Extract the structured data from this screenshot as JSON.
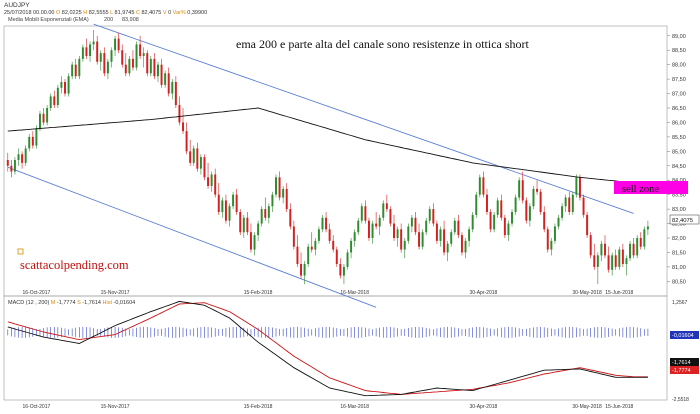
{
  "header": {
    "symbol": "AUDJPY",
    "bar_info": {
      "date": "25/07/2018",
      "time": "00.00.00",
      "open_label": "O",
      "open": "82,0225",
      "high_label": "H",
      "high": "82,5555",
      "low_label": "L",
      "low": "81,9745",
      "close_label": "C",
      "close": "82,4075",
      "volume_label": "V",
      "volume": "0",
      "change_label": "Var%",
      "change": "0,39900"
    },
    "ema_label": "Media Mobili Esponenziali (EMA)",
    "ema_period": "200",
    "ema_value": "83,908"
  },
  "annotations": {
    "ema_note": "ema 200 e parte alta del canale sono resistenze in ottica short",
    "sell_zone": "sell zone",
    "watermark": "scattacolpending.com"
  },
  "colors": {
    "up": "#2e8b2e",
    "down": "#d42020",
    "ema": "#111111",
    "channel": "#5b7fd6",
    "sell_zone": "#ff00e6",
    "macd_line": "#111111",
    "signal_line": "#cc1111",
    "histogram": "#3344cc",
    "watermark": "#c01010",
    "current_price_box": "#ffffff",
    "macd_badge": "#111111",
    "signal_badge": "#dd2222",
    "hist_badge": "#2233bb"
  },
  "chart_data": [
    {
      "type": "candlestick",
      "title": "AUDJPY",
      "y_ticks": [
        "89,00",
        "88,50",
        "88,00",
        "87,50",
        "87,00",
        "86,50",
        "86,00",
        "85,50",
        "85,00",
        "84,50",
        "84,00",
        "83,50",
        "83,00",
        "82,50",
        "82,00",
        "81,50",
        "81,00",
        "80,50"
      ],
      "y_range": [
        80.2,
        89.2
      ],
      "current_price": "82,4075",
      "x_ticks": [
        "16-Oct-2017",
        "15-Nov-2017",
        "15-Feb-2018",
        "16-Mar-2018",
        "30-Apr-2018",
        "30-May-2018",
        "15-Jun-2018"
      ],
      "x_tick_index": [
        8,
        30,
        70,
        97,
        133,
        162,
        171
      ],
      "candles_ohlc": [
        [
          84.7,
          84.95,
          84.3,
          84.5
        ],
        [
          84.5,
          84.7,
          84.1,
          84.3
        ],
        [
          84.3,
          84.8,
          84.2,
          84.7
        ],
        [
          84.7,
          85.1,
          84.5,
          84.9
        ],
        [
          84.9,
          85.0,
          84.4,
          84.6
        ],
        [
          84.6,
          85.2,
          84.5,
          85.1
        ],
        [
          85.1,
          85.6,
          85.0,
          85.5
        ],
        [
          85.5,
          85.7,
          85.1,
          85.2
        ],
        [
          85.2,
          85.9,
          85.1,
          85.8
        ],
        [
          85.8,
          86.4,
          85.7,
          86.3
        ],
        [
          86.3,
          86.5,
          85.9,
          86.0
        ],
        [
          86.0,
          86.6,
          85.9,
          86.5
        ],
        [
          86.5,
          87.0,
          86.4,
          86.9
        ],
        [
          86.9,
          87.1,
          86.5,
          86.6
        ],
        [
          86.6,
          87.3,
          86.5,
          87.2
        ],
        [
          87.2,
          87.6,
          87.0,
          87.4
        ],
        [
          87.4,
          87.5,
          86.9,
          87.0
        ],
        [
          87.0,
          87.7,
          86.9,
          87.6
        ],
        [
          87.6,
          88.1,
          87.5,
          88.0
        ],
        [
          88.0,
          88.2,
          87.5,
          87.6
        ],
        [
          87.6,
          88.3,
          87.5,
          88.2
        ],
        [
          88.2,
          88.7,
          88.1,
          88.6
        ],
        [
          88.6,
          88.9,
          88.2,
          88.3
        ],
        [
          88.3,
          88.8,
          88.1,
          88.7
        ],
        [
          88.7,
          89.2,
          88.5,
          88.8
        ],
        [
          88.8,
          89.0,
          88.0,
          88.1
        ],
        [
          88.1,
          88.5,
          87.8,
          88.4
        ],
        [
          88.4,
          88.6,
          87.6,
          87.7
        ],
        [
          87.7,
          88.2,
          87.5,
          88.1
        ],
        [
          88.1,
          88.6,
          87.9,
          88.5
        ],
        [
          88.5,
          89.0,
          88.3,
          88.9
        ],
        [
          88.9,
          89.1,
          88.4,
          88.5
        ],
        [
          88.5,
          88.7,
          87.9,
          88.0
        ],
        [
          88.0,
          88.4,
          87.6,
          87.7
        ],
        [
          87.7,
          88.3,
          87.6,
          88.2
        ],
        [
          88.2,
          88.5,
          87.8,
          87.9
        ],
        [
          87.9,
          88.8,
          87.8,
          88.7
        ],
        [
          88.7,
          89.0,
          88.2,
          88.3
        ],
        [
          88.3,
          88.6,
          87.9,
          88.4
        ],
        [
          88.4,
          88.5,
          87.6,
          87.7
        ],
        [
          87.7,
          88.3,
          87.6,
          88.2
        ],
        [
          88.2,
          88.4,
          87.5,
          87.6
        ],
        [
          87.6,
          88.1,
          87.4,
          88.0
        ],
        [
          88.0,
          88.2,
          87.2,
          87.3
        ],
        [
          87.3,
          87.8,
          87.2,
          87.7
        ],
        [
          87.7,
          87.9,
          86.9,
          87.0
        ],
        [
          87.0,
          87.5,
          86.8,
          87.4
        ],
        [
          87.4,
          87.6,
          86.5,
          86.6
        ],
        [
          86.6,
          86.9,
          85.9,
          86.0
        ],
        [
          86.0,
          86.5,
          85.6,
          85.7
        ],
        [
          85.7,
          86.0,
          84.9,
          85.0
        ],
        [
          85.0,
          85.4,
          84.5,
          84.6
        ],
        [
          84.6,
          85.2,
          84.5,
          85.1
        ],
        [
          85.1,
          85.3,
          84.3,
          84.4
        ],
        [
          84.4,
          84.9,
          84.2,
          84.8
        ],
        [
          84.8,
          84.9,
          84.0,
          84.1
        ],
        [
          84.1,
          84.6,
          83.7,
          83.8
        ],
        [
          83.8,
          84.3,
          83.6,
          84.2
        ],
        [
          84.2,
          84.4,
          83.4,
          83.5
        ],
        [
          83.5,
          83.9,
          82.8,
          82.9
        ],
        [
          82.9,
          83.4,
          82.7,
          83.3
        ],
        [
          83.3,
          83.5,
          82.5,
          82.6
        ],
        [
          82.6,
          83.2,
          82.4,
          83.1
        ],
        [
          83.1,
          83.6,
          83.0,
          83.5
        ],
        [
          83.5,
          83.7,
          82.8,
          82.9
        ],
        [
          82.9,
          83.0,
          82.1,
          82.2
        ],
        [
          82.2,
          82.8,
          82.0,
          82.7
        ],
        [
          82.7,
          82.9,
          82.1,
          82.2
        ],
        [
          82.2,
          82.5,
          81.5,
          81.6
        ],
        [
          81.6,
          82.2,
          81.4,
          82.1
        ],
        [
          82.1,
          82.6,
          81.9,
          82.5
        ],
        [
          82.5,
          83.1,
          82.4,
          83.0
        ],
        [
          83.0,
          83.4,
          82.6,
          82.7
        ],
        [
          82.7,
          83.2,
          82.5,
          83.1
        ],
        [
          83.1,
          83.6,
          82.9,
          83.5
        ],
        [
          83.5,
          84.2,
          83.4,
          84.1
        ],
        [
          84.1,
          84.3,
          83.3,
          83.4
        ],
        [
          83.4,
          83.8,
          83.2,
          83.7
        ],
        [
          83.7,
          83.9,
          82.9,
          83.0
        ],
        [
          83.0,
          83.2,
          82.3,
          82.4
        ],
        [
          82.4,
          82.6,
          81.6,
          81.7
        ],
        [
          81.7,
          82.1,
          81.0,
          81.1
        ],
        [
          81.1,
          81.5,
          80.6,
          80.7
        ],
        [
          80.7,
          81.2,
          80.4,
          81.1
        ],
        [
          81.1,
          81.8,
          81.0,
          81.7
        ],
        [
          81.7,
          82.2,
          81.5,
          81.6
        ],
        [
          81.6,
          82.0,
          81.4,
          81.9
        ],
        [
          81.9,
          82.4,
          81.8,
          82.3
        ],
        [
          82.3,
          82.8,
          82.2,
          82.7
        ],
        [
          82.7,
          82.9,
          82.2,
          82.3
        ],
        [
          82.3,
          82.5,
          81.8,
          81.9
        ],
        [
          81.9,
          82.1,
          81.5,
          81.6
        ],
        [
          81.6,
          81.7,
          81.0,
          81.1
        ],
        [
          81.1,
          81.3,
          80.6,
          80.7
        ],
        [
          80.7,
          81.1,
          80.4,
          81.0
        ],
        [
          81.0,
          81.6,
          80.9,
          81.5
        ],
        [
          81.5,
          82.0,
          81.3,
          81.9
        ],
        [
          81.9,
          82.3,
          81.7,
          82.2
        ],
        [
          82.2,
          82.7,
          82.1,
          82.6
        ],
        [
          82.6,
          83.2,
          82.5,
          83.1
        ],
        [
          83.1,
          83.3,
          82.5,
          82.6
        ],
        [
          82.6,
          82.7,
          81.9,
          82.0
        ],
        [
          82.0,
          82.6,
          81.8,
          82.5
        ],
        [
          82.5,
          82.9,
          82.3,
          82.4
        ],
        [
          82.4,
          82.8,
          82.1,
          82.7
        ],
        [
          82.7,
          83.3,
          82.6,
          83.2
        ],
        [
          83.2,
          83.5,
          82.9,
          83.0
        ],
        [
          83.0,
          83.1,
          82.4,
          82.5
        ],
        [
          82.5,
          82.8,
          81.9,
          82.0
        ],
        [
          82.0,
          82.4,
          81.7,
          82.3
        ],
        [
          82.3,
          82.5,
          81.5,
          81.6
        ],
        [
          81.6,
          82.0,
          81.3,
          81.9
        ],
        [
          81.9,
          82.5,
          81.8,
          82.4
        ],
        [
          82.4,
          82.8,
          82.2,
          82.7
        ],
        [
          82.7,
          82.9,
          82.1,
          82.2
        ],
        [
          82.2,
          82.5,
          81.6,
          81.7
        ],
        [
          81.7,
          82.3,
          81.6,
          82.2
        ],
        [
          82.2,
          82.7,
          82.1,
          82.6
        ],
        [
          82.6,
          83.1,
          82.5,
          83.0
        ],
        [
          83.0,
          83.2,
          82.4,
          82.5
        ],
        [
          82.5,
          82.6,
          81.8,
          81.9
        ],
        [
          81.9,
          82.4,
          81.7,
          82.3
        ],
        [
          82.3,
          82.6,
          81.4,
          81.5
        ],
        [
          81.5,
          81.9,
          81.2,
          81.8
        ],
        [
          81.8,
          82.3,
          81.7,
          82.2
        ],
        [
          82.2,
          82.7,
          82.1,
          82.6
        ],
        [
          82.6,
          82.8,
          82.0,
          82.1
        ],
        [
          82.1,
          82.2,
          81.4,
          81.5
        ],
        [
          81.5,
          82.0,
          81.3,
          81.9
        ],
        [
          81.9,
          82.4,
          81.7,
          82.3
        ],
        [
          82.3,
          82.9,
          82.2,
          82.8
        ],
        [
          82.8,
          83.6,
          82.7,
          83.5
        ],
        [
          83.5,
          84.2,
          83.4,
          84.1
        ],
        [
          84.1,
          84.3,
          83.4,
          83.5
        ],
        [
          83.5,
          83.7,
          82.8,
          82.9
        ],
        [
          82.9,
          83.0,
          82.2,
          82.3
        ],
        [
          82.3,
          82.9,
          82.2,
          82.8
        ],
        [
          82.8,
          83.4,
          82.7,
          83.3
        ],
        [
          83.3,
          83.5,
          82.6,
          82.7
        ],
        [
          82.7,
          82.8,
          82.0,
          82.1
        ],
        [
          82.1,
          82.6,
          81.9,
          82.5
        ],
        [
          82.5,
          83.0,
          82.4,
          82.9
        ],
        [
          82.9,
          83.5,
          82.8,
          83.4
        ],
        [
          83.4,
          84.1,
          83.3,
          84.0
        ],
        [
          84.0,
          84.3,
          83.2,
          83.3
        ],
        [
          83.3,
          83.4,
          82.5,
          82.6
        ],
        [
          82.6,
          83.2,
          82.4,
          83.1
        ],
        [
          83.1,
          83.8,
          83.0,
          83.7
        ],
        [
          83.7,
          84.0,
          83.5,
          83.6
        ],
        [
          83.6,
          83.7,
          82.8,
          82.9
        ],
        [
          82.9,
          83.1,
          82.2,
          82.3
        ],
        [
          82.3,
          82.4,
          81.5,
          81.6
        ],
        [
          81.6,
          82.0,
          81.4,
          81.9
        ],
        [
          81.9,
          82.5,
          81.8,
          82.4
        ],
        [
          82.4,
          82.8,
          82.3,
          82.7
        ],
        [
          82.7,
          83.2,
          82.6,
          83.1
        ],
        [
          83.1,
          83.5,
          82.9,
          83.4
        ],
        [
          83.4,
          83.6,
          82.8,
          82.9
        ],
        [
          82.9,
          83.6,
          82.8,
          83.5
        ],
        [
          83.5,
          84.2,
          83.4,
          84.1
        ],
        [
          84.1,
          84.2,
          83.3,
          83.4
        ],
        [
          83.4,
          83.5,
          82.7,
          82.8
        ],
        [
          82.8,
          82.9,
          82.0,
          82.1
        ],
        [
          82.1,
          82.2,
          81.3,
          81.4
        ],
        [
          81.4,
          81.8,
          80.9,
          81.0
        ],
        [
          81.0,
          81.5,
          80.4,
          81.4
        ],
        [
          81.4,
          81.9,
          81.2,
          81.8
        ],
        [
          81.8,
          82.1,
          81.3,
          81.4
        ],
        [
          81.4,
          81.7,
          80.8,
          80.9
        ],
        [
          80.9,
          81.5,
          80.7,
          81.4
        ],
        [
          81.4,
          81.6,
          80.9,
          81.0
        ],
        [
          81.0,
          81.7,
          80.9,
          81.6
        ],
        [
          81.6,
          81.8,
          81.0,
          81.1
        ],
        [
          81.1,
          81.4,
          80.7,
          81.3
        ],
        [
          81.3,
          81.9,
          81.2,
          81.8
        ],
        [
          81.8,
          82.0,
          81.3,
          81.4
        ],
        [
          81.4,
          82.1,
          81.3,
          82.0
        ],
        [
          82.0,
          82.2,
          81.6,
          81.7
        ],
        [
          81.7,
          82.4,
          81.6,
          82.3
        ],
        [
          82.3,
          82.6,
          82.1,
          82.4
        ]
      ],
      "ema200": {
        "start": 85.7,
        "points_index": [
          0,
          40,
          70,
          100,
          130,
          160,
          175
        ],
        "points_value": [
          85.7,
          86.1,
          86.5,
          85.4,
          84.6,
          84.1,
          83.91
        ]
      },
      "channel": {
        "upper": {
          "from_index": 24,
          "from_value": 89.4,
          "to_index": 175,
          "to_value": 82.85
        },
        "lower": {
          "from_index": 0,
          "from_value": 84.45,
          "to_index": 103,
          "to_value": 79.6
        }
      }
    },
    {
      "type": "macd",
      "title": "MACD",
      "params": "(12 , 200)",
      "macd_label": "M",
      "macd_value": "-1,7774",
      "signal_label": "S",
      "signal_value": "-1,7614",
      "hist_label": "Hist",
      "hist_value": "-0,01604",
      "y_ticks": [
        "1,2567",
        "-2,5518"
      ],
      "y_range": [
        -2.5518,
        1.2567
      ],
      "x_ticks": [
        "16-Oct-2017",
        "15-Nov-2017",
        "15-Feb-2018",
        "16-Mar-2018",
        "30-Apr-2018",
        "30-May-2018",
        "15-Jun-2018"
      ],
      "x_tick_index": [
        8,
        30,
        70,
        97,
        133,
        162,
        171
      ],
      "macd_index": [
        0,
        10,
        20,
        30,
        40,
        48,
        55,
        62,
        70,
        80,
        90,
        100,
        110,
        120,
        130,
        140,
        150,
        160,
        170,
        175
      ],
      "macd_values": [
        0.2,
        -0.2,
        -0.45,
        0.25,
        0.8,
        1.2,
        1.05,
        0.55,
        -0.4,
        -1.4,
        -2.2,
        -2.5,
        -2.45,
        -2.2,
        -2.3,
        -1.9,
        -1.5,
        -1.45,
        -1.78,
        -1.78
      ],
      "signal_values": [
        0.4,
        0.0,
        -0.3,
        -0.1,
        0.55,
        1.1,
        1.15,
        0.8,
        0.1,
        -0.95,
        -1.8,
        -2.3,
        -2.45,
        -2.35,
        -2.25,
        -2.0,
        -1.65,
        -1.4,
        -1.7,
        -1.76
      ],
      "hist_level": -0.016
    }
  ]
}
